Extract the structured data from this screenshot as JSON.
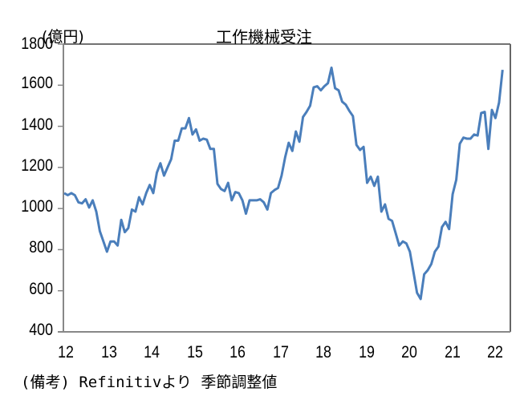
{
  "chart": {
    "title": "工作機械受注",
    "unit_label": "(億円)",
    "note": "(備考) Refinitivより 季節調整値",
    "line_color": "#4a7ebb"
  },
  "y_ticks": [
    "1800",
    "1600",
    "1400",
    "1200",
    "1000",
    "800",
    "600",
    "400"
  ],
  "x_ticks": [
    "12",
    "13",
    "14",
    "15",
    "16",
    "17",
    "18",
    "19",
    "20",
    "21",
    "22"
  ],
  "chart_data": {
    "type": "line",
    "title": "工作機械受注",
    "xlabel": "",
    "ylabel": "(億円)",
    "ylim": [
      400,
      1800
    ],
    "y_ticks": [
      400,
      600,
      800,
      1000,
      1200,
      1400,
      1600,
      1800
    ],
    "x_tick_labels": [
      "12",
      "13",
      "14",
      "15",
      "16",
      "17",
      "18",
      "19",
      "20",
      "21",
      "22"
    ],
    "x_start": "2012-01",
    "frequency": "monthly",
    "grid": false,
    "legend": null,
    "note": "(備考) Refinitivより 季節調整値",
    "series": [
      {
        "name": "工作機械受注",
        "values": [
          1075,
          1065,
          1075,
          1065,
          1030,
          1025,
          1045,
          1005,
          1040,
          985,
          890,
          840,
          790,
          840,
          840,
          820,
          945,
          885,
          905,
          995,
          985,
          1055,
          1020,
          1075,
          1115,
          1075,
          1175,
          1220,
          1160,
          1200,
          1240,
          1330,
          1330,
          1390,
          1390,
          1440,
          1360,
          1385,
          1330,
          1340,
          1335,
          1290,
          1290,
          1120,
          1095,
          1085,
          1125,
          1040,
          1080,
          1075,
          1040,
          975,
          1040,
          1040,
          1040,
          1045,
          1030,
          995,
          1075,
          1090,
          1100,
          1160,
          1250,
          1320,
          1280,
          1375,
          1325,
          1445,
          1470,
          1500,
          1590,
          1595,
          1575,
          1595,
          1610,
          1685,
          1585,
          1575,
          1520,
          1505,
          1475,
          1450,
          1310,
          1285,
          1300,
          1125,
          1155,
          1110,
          1155,
          985,
          1020,
          950,
          940,
          880,
          820,
          840,
          830,
          790,
          690,
          590,
          560,
          680,
          700,
          730,
          790,
          815,
          910,
          935,
          900,
          1070,
          1140,
          1315,
          1345,
          1340,
          1340,
          1360,
          1355,
          1465,
          1470,
          1290,
          1480,
          1440,
          1515,
          1675
        ]
      }
    ]
  }
}
